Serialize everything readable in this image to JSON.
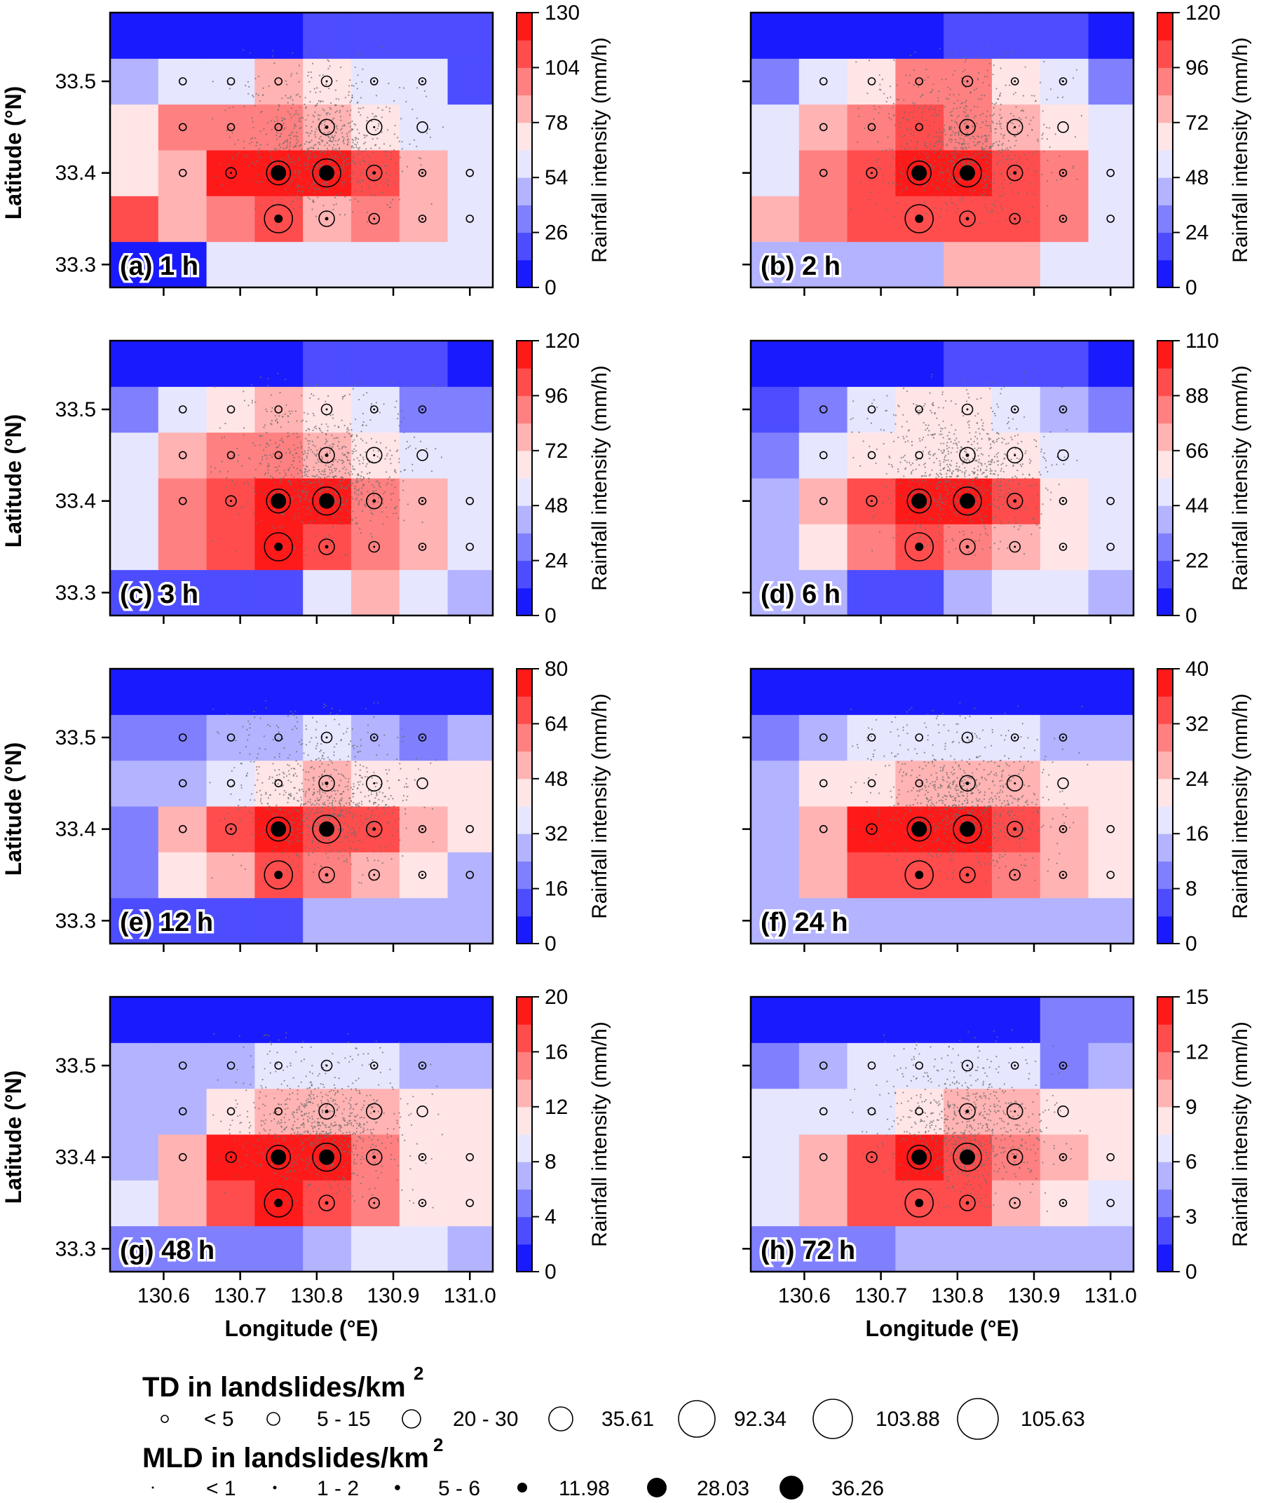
{
  "chart_data": {
    "type": "heatmap",
    "shared": {
      "xlabel": "Longitude (°E)",
      "ylabel": "Latitude (°N)",
      "colorbar_label": "Rainfall intensity (mm/h)",
      "x_ticks": [
        "130.6",
        "130.7",
        "130.8",
        "130.9",
        "131.0"
      ],
      "x_tick_values": [
        130.6,
        130.7,
        130.8,
        130.9,
        131.0
      ],
      "y_ticks": [
        "33.3",
        "33.4",
        "33.5"
      ],
      "y_tick_values": [
        33.3,
        33.4,
        33.5
      ],
      "xlim": [
        130.53,
        131.03
      ],
      "ylim": [
        33.275,
        33.575
      ],
      "grid_lon_edges": [
        130.53,
        130.593,
        130.656,
        130.719,
        130.782,
        130.845,
        130.908,
        130.971,
        131.03
      ],
      "grid_lat_edges": [
        33.275,
        33.325,
        33.375,
        33.425,
        33.475,
        33.525,
        33.575
      ],
      "marker_lons": [
        130.625,
        130.688,
        130.75,
        130.813,
        130.875,
        130.938,
        131.0
      ],
      "marker_lats": [
        33.35,
        33.4,
        33.45,
        33.5
      ],
      "td_sizes": [
        [
          0,
          0,
          6,
          3,
          2,
          1,
          1
        ],
        [
          1,
          2,
          5,
          6,
          3,
          1,
          1
        ],
        [
          1,
          1,
          1,
          3,
          3,
          2,
          0
        ],
        [
          1,
          1,
          1,
          2,
          1,
          1,
          0
        ]
      ],
      "mld_sizes": [
        [
          0,
          0,
          4,
          2,
          1,
          1,
          0
        ],
        [
          0,
          1,
          5,
          5,
          2,
          1,
          0
        ],
        [
          0,
          0,
          0,
          2,
          1,
          0,
          0
        ],
        [
          0,
          0,
          0,
          1,
          1,
          1,
          0
        ]
      ],
      "markers_absent_at": [
        [
          0,
          0
        ],
        [
          0,
          1
        ],
        [
          2,
          6
        ],
        [
          3,
          6
        ]
      ]
    },
    "panels": [
      {
        "label": "(a) 1 h",
        "colorbar_ticks": [
          "0",
          "26",
          "54",
          "78",
          "104",
          "130"
        ],
        "vmax": 130,
        "grid": [
          [
            10,
            12,
            55,
            55,
            62,
            62,
            62,
            62
          ],
          [
            105,
            90,
            100,
            110,
            90,
            95,
            90,
            58
          ],
          [
            75,
            90,
            120,
            125,
            120,
            110,
            90,
            58
          ],
          [
            75,
            95,
            100,
            100,
            90,
            70,
            58,
            58
          ],
          [
            40,
            55,
            62,
            90,
            70,
            62,
            58,
            20
          ],
          [
            5,
            5,
            5,
            5,
            15,
            15,
            15,
            15
          ]
        ]
      },
      {
        "label": "(b) 2 h",
        "colorbar_ticks": [
          "0",
          "24",
          "48",
          "72",
          "96",
          "120"
        ],
        "vmax": 120,
        "grid": [
          [
            40,
            40,
            40,
            40,
            75,
            75,
            50,
            50
          ],
          [
            75,
            85,
            100,
            100,
            100,
            100,
            95,
            50
          ],
          [
            50,
            85,
            105,
            110,
            110,
            105,
            85,
            50
          ],
          [
            50,
            75,
            85,
            105,
            90,
            75,
            60,
            50
          ],
          [
            30,
            55,
            65,
            85,
            85,
            70,
            55,
            30
          ],
          [
            5,
            5,
            5,
            5,
            15,
            15,
            15,
            5
          ]
        ]
      },
      {
        "label": "(c) 3 h",
        "colorbar_ticks": [
          "0",
          "24",
          "48",
          "72",
          "96",
          "120"
        ],
        "vmax": 120,
        "grid": [
          [
            20,
            20,
            20,
            20,
            55,
            75,
            55,
            40
          ],
          [
            50,
            85,
            100,
            110,
            100,
            85,
            80,
            50
          ],
          [
            50,
            85,
            100,
            110,
            110,
            95,
            75,
            50
          ],
          [
            50,
            75,
            85,
            90,
            80,
            60,
            50,
            50
          ],
          [
            30,
            50,
            60,
            75,
            70,
            55,
            30,
            30
          ],
          [
            5,
            5,
            5,
            5,
            15,
            15,
            15,
            5
          ]
        ]
      },
      {
        "label": "(d) 6 h",
        "colorbar_ticks": [
          "0",
          "22",
          "44",
          "66",
          "88",
          "110"
        ],
        "vmax": 110,
        "grid": [
          [
            35,
            35,
            15,
            15,
            35,
            50,
            50,
            35
          ],
          [
            35,
            65,
            85,
            90,
            85,
            75,
            65,
            50
          ],
          [
            35,
            75,
            95,
            100,
            100,
            90,
            65,
            50
          ],
          [
            30,
            50,
            55,
            65,
            65,
            55,
            50,
            50
          ],
          [
            20,
            30,
            50,
            55,
            55,
            50,
            35,
            30
          ],
          [
            5,
            5,
            5,
            5,
            15,
            15,
            15,
            5
          ]
        ]
      },
      {
        "label": "(e) 12 h",
        "colorbar_ticks": [
          "0",
          "16",
          "32",
          "48",
          "64",
          "80"
        ],
        "vmax": 80,
        "grid": [
          [
            15,
            15,
            15,
            15,
            25,
            30,
            30,
            25
          ],
          [
            20,
            40,
            55,
            65,
            60,
            50,
            40,
            25
          ],
          [
            20,
            55,
            65,
            72,
            70,
            65,
            50,
            40
          ],
          [
            25,
            25,
            35,
            45,
            50,
            45,
            40,
            40
          ],
          [
            20,
            20,
            30,
            30,
            35,
            30,
            20,
            25
          ],
          [
            5,
            5,
            5,
            5,
            5,
            5,
            5,
            2
          ]
        ]
      },
      {
        "label": "(f) 24 h",
        "colorbar_ticks": [
          "0",
          "8",
          "16",
          "24",
          "32",
          "40"
        ],
        "vmax": 40,
        "grid": [
          [
            15,
            15,
            15,
            12,
            12,
            12,
            15,
            12
          ],
          [
            15,
            25,
            33,
            35,
            33,
            30,
            25,
            20
          ],
          [
            15,
            27,
            36,
            38,
            37,
            32,
            25,
            20
          ],
          [
            15,
            20,
            22,
            24,
            24,
            24,
            22,
            20
          ],
          [
            10,
            12,
            18,
            18,
            18,
            18,
            12,
            15
          ],
          [
            2,
            2,
            2,
            2,
            2,
            2,
            2,
            2
          ]
        ]
      },
      {
        "label": "(g) 48 h",
        "colorbar_ticks": [
          "0",
          "4",
          "8",
          "12",
          "16",
          "20"
        ],
        "vmax": 20,
        "grid": [
          [
            5,
            5,
            5,
            5,
            7,
            9,
            9,
            7
          ],
          [
            9,
            12,
            17,
            18,
            16,
            14,
            10,
            10
          ],
          [
            7,
            12,
            18,
            19,
            18,
            14,
            11,
            10
          ],
          [
            7,
            7,
            10,
            12,
            13,
            13,
            10,
            10
          ],
          [
            6,
            6,
            7,
            8,
            8,
            8,
            6,
            7
          ],
          [
            1,
            1,
            1,
            1,
            1,
            1,
            1,
            1
          ]
        ]
      },
      {
        "label": "(h) 72 h",
        "colorbar_ticks": [
          "0",
          "3",
          "6",
          "9",
          "12",
          "15"
        ],
        "vmax": 15,
        "grid": [
          [
            4,
            4,
            4,
            5,
            5,
            5,
            5,
            5
          ],
          [
            7,
            9,
            12,
            13,
            12,
            10,
            8,
            7
          ],
          [
            6,
            9,
            13,
            14,
            13,
            11,
            9,
            8
          ],
          [
            6,
            6,
            7,
            8,
            9,
            9,
            8,
            8
          ],
          [
            4,
            5,
            6,
            6,
            6,
            6,
            4,
            5
          ],
          [
            1,
            1,
            1,
            1,
            1,
            1,
            3,
            3
          ]
        ]
      }
    ],
    "legend": {
      "td_title": "TD in landslides/km",
      "td_superscript": "2",
      "td_entries": [
        "< 5",
        "5 - 15",
        "20 - 30",
        "35.61",
        "92.34",
        "103.88",
        "105.63"
      ],
      "mld_title": "MLD in landslides/km",
      "mld_superscript": "2",
      "mld_entries": [
        "< 1",
        "1 - 2",
        "5 - 6",
        "11.98",
        "28.03",
        "36.26"
      ]
    }
  }
}
